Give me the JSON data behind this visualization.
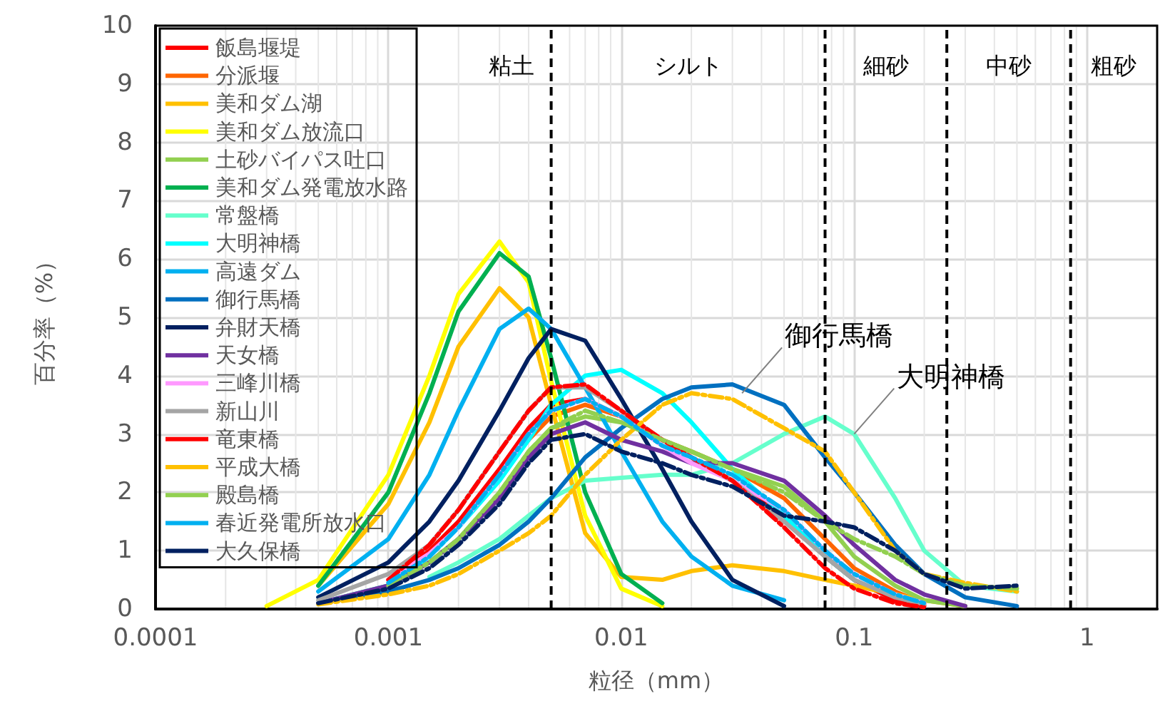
{
  "chart_data": {
    "type": "line",
    "xlabel": "粒径（mm）",
    "ylabel": "百分率（%）",
    "log": "x",
    "xlim": [
      0.0001,
      2
    ],
    "xticks": [
      0.0001,
      0.001,
      0.01,
      0.1,
      1
    ],
    "ylim": [
      0,
      10
    ],
    "yticks": [
      0,
      1,
      2,
      3,
      4,
      5,
      6,
      7,
      8,
      9,
      10
    ],
    "grid": true,
    "legend": "top left",
    "marker": "none",
    "x": [
      0.0003,
      0.0005,
      0.001,
      0.0015,
      0.002,
      0.003,
      0.004,
      0.005,
      0.007,
      0.01,
      0.015,
      0.02,
      0.03,
      0.05,
      0.075,
      0.1,
      0.15,
      0.2,
      0.3,
      0.5
    ],
    "series": [
      {
        "name": "飯島堰堤",
        "color": "#ff0000",
        "line_style": "solid",
        "values": [
          null,
          null,
          0.5,
          1,
          1.5,
          2.4,
          3.1,
          3.5,
          3.6,
          3.3,
          2.9,
          2.6,
          2.2,
          1.6,
          0.9,
          0.5,
          0.15,
          0.05,
          null,
          null
        ]
      },
      {
        "name": "分派堰",
        "color": "#ff6600",
        "line_style": "solid",
        "values": [
          null,
          null,
          null,
          null,
          null,
          2.3,
          2.9,
          3.3,
          3.5,
          3.3,
          2.9,
          2.7,
          2.4,
          1.9,
          1.2,
          0.7,
          0.3,
          0.1,
          null,
          null
        ]
      },
      {
        "name": "美和ダム湖",
        "color": "#ffc000",
        "line_style": "solid",
        "values": [
          null,
          0.4,
          1.8,
          3.2,
          4.5,
          5.5,
          5,
          3.5,
          1.3,
          0.55,
          0.5,
          0.65,
          0.75,
          0.65,
          0.5,
          0.4,
          0.25,
          0.15,
          0.05,
          null
        ]
      },
      {
        "name": "美和ダム放流口",
        "color": "#ffff00",
        "line_style": "solid",
        "values": [
          0.05,
          0.5,
          2.3,
          4,
          5.4,
          6.3,
          5.6,
          3.9,
          1.6,
          0.35,
          0.05,
          null,
          null,
          null,
          null,
          null,
          null,
          null,
          null,
          null
        ]
      },
      {
        "name": "土砂バイパス吐口",
        "color": "#92d050",
        "line_style": "solid",
        "values": [
          null,
          0.1,
          0.4,
          0.8,
          1.2,
          2,
          2.7,
          3.1,
          3.3,
          3.2,
          2.9,
          2.7,
          2.4,
          2.1,
          1.5,
          0.9,
          0.4,
          0.15,
          0.05,
          null
        ]
      },
      {
        "name": "美和ダム発電放水路",
        "color": "#00b050",
        "line_style": "solid",
        "values": [
          null,
          0.4,
          2,
          3.7,
          5.1,
          6.1,
          5.7,
          4.3,
          2,
          0.6,
          0.1,
          null,
          null,
          null,
          null,
          null,
          null,
          null,
          null,
          null
        ]
      },
      {
        "name": "常盤橋",
        "color": "#66ffcc",
        "line_style": "solid",
        "values": [
          null,
          null,
          null,
          0.55,
          0.8,
          1.2,
          1.6,
          1.9,
          2.2,
          2.25,
          2.3,
          2.3,
          2.5,
          3,
          3.3,
          3,
          1.9,
          1,
          0.4,
          0.3
        ]
      },
      {
        "name": "大明神橋",
        "color": "#00ffff",
        "line_style": "solid",
        "values": [
          null,
          0.1,
          0.4,
          0.9,
          1.4,
          2.2,
          2.9,
          3.5,
          4,
          4.1,
          3.7,
          3.2,
          2.4,
          1.6,
          0.9,
          0.5,
          null,
          null,
          null,
          null
        ]
      },
      {
        "name": "高遠ダム",
        "color": "#00b0f0",
        "line_style": "solid",
        "values": [
          null,
          0.3,
          1.2,
          2.3,
          3.4,
          4.8,
          5.15,
          4.8,
          3.8,
          2.7,
          1.5,
          0.9,
          0.4,
          0.15,
          null,
          null,
          null,
          null,
          null,
          null
        ]
      },
      {
        "name": "御行馬橋",
        "color": "#0070c0",
        "line_style": "solid",
        "values": [
          null,
          0.1,
          0.3,
          0.5,
          0.7,
          1.1,
          1.5,
          1.9,
          2.6,
          3.1,
          3.6,
          3.8,
          3.85,
          3.5,
          2.6,
          2,
          1.1,
          0.6,
          0.2,
          0.05
        ]
      },
      {
        "name": "弁財天橋",
        "color": "#002060",
        "line_style": "solid",
        "values": [
          null,
          0.2,
          0.8,
          1.5,
          2.2,
          3.4,
          4.3,
          4.8,
          4.6,
          3.6,
          2.4,
          1.5,
          0.5,
          0.05,
          null,
          null,
          null,
          null,
          null,
          null
        ]
      },
      {
        "name": "天女橋",
        "color": "#7030a0",
        "line_style": "solid",
        "values": [
          null,
          0.1,
          0.4,
          0.8,
          1.2,
          1.9,
          2.6,
          3,
          3.2,
          2.9,
          2.7,
          2.5,
          2.5,
          2.2,
          1.6,
          1.1,
          0.5,
          0.25,
          0.05,
          null
        ]
      },
      {
        "name": "三峰川橋",
        "color": "#ff99ff",
        "line_style": "solid",
        "values": [
          null,
          null,
          0.5,
          0.95,
          1.4,
          2.3,
          3,
          3.4,
          3.6,
          3.3,
          2.8,
          2.5,
          2.2,
          1.7,
          1,
          0.6,
          0.25,
          0.1,
          null,
          null
        ]
      },
      {
        "name": "新山川",
        "color": "#a5a5a5",
        "line_style": "solid",
        "values": [
          null,
          0.15,
          0.6,
          1.1,
          1.7,
          2.7,
          3.4,
          3.8,
          3.8,
          3.4,
          2.9,
          2.6,
          2.2,
          1.5,
          0.9,
          0.5,
          0.2,
          0.08,
          null,
          null
        ]
      },
      {
        "name": "竜東橋",
        "color": "#ff0000",
        "line_style": "dashed",
        "values": [
          null,
          null,
          0.5,
          1.1,
          1.7,
          2.7,
          3.4,
          3.8,
          3.85,
          3.4,
          2.9,
          2.6,
          2.2,
          1.4,
          0.7,
          0.35,
          0.1,
          0.03,
          null,
          null
        ]
      },
      {
        "name": "平成大橋",
        "color": "#ffc000",
        "line_style": "dashed",
        "values": [
          null,
          0.08,
          0.25,
          0.4,
          0.6,
          1,
          1.3,
          1.6,
          2.3,
          2.9,
          3.5,
          3.7,
          3.6,
          3.1,
          2.7,
          2,
          1,
          0.6,
          0.45,
          0.3
        ]
      },
      {
        "name": "殿島橋",
        "color": "#92d050",
        "line_style": "dashed",
        "values": [
          null,
          null,
          0.4,
          0.8,
          1.2,
          2,
          2.7,
          3.1,
          3.4,
          3.2,
          2.9,
          2.7,
          2.4,
          2,
          1.5,
          1.2,
          0.9,
          0.6,
          0.4,
          0.35
        ]
      },
      {
        "name": "春近発電所放水口",
        "color": "#00b0f0",
        "line_style": "dashed",
        "values": [
          null,
          null,
          0.45,
          0.9,
          1.4,
          2.3,
          3,
          3.4,
          3.6,
          3.3,
          2.8,
          2.6,
          2.3,
          1.7,
          1,
          0.6,
          0.25,
          0.1,
          null,
          null
        ]
      },
      {
        "name": "大久保橋",
        "color": "#002060",
        "line_style": "dashed",
        "values": [
          null,
          0.1,
          0.35,
          0.7,
          1.1,
          1.8,
          2.5,
          2.9,
          3,
          2.7,
          2.5,
          2.3,
          2.1,
          1.6,
          1.5,
          1.4,
          1,
          0.6,
          0.35,
          0.4
        ]
      }
    ],
    "ref_lines": [
      {
        "axis": "x",
        "value": 0.005,
        "line_style": "dashed"
      },
      {
        "axis": "x",
        "value": 0.075,
        "line_style": "dashed"
      },
      {
        "axis": "x",
        "value": 0.25,
        "line_style": "dashed"
      },
      {
        "axis": "x",
        "value": 0.85,
        "line_style": "dashed"
      }
    ],
    "annotations": [
      "粘土",
      "シルト",
      "細砂",
      "中砂",
      "粗砂",
      {
        "text": "御行馬橋",
        "x": 0.033,
        "y": 3.7
      },
      {
        "text": "大明神橋",
        "x": 0.1,
        "y": 3
      }
    ]
  }
}
